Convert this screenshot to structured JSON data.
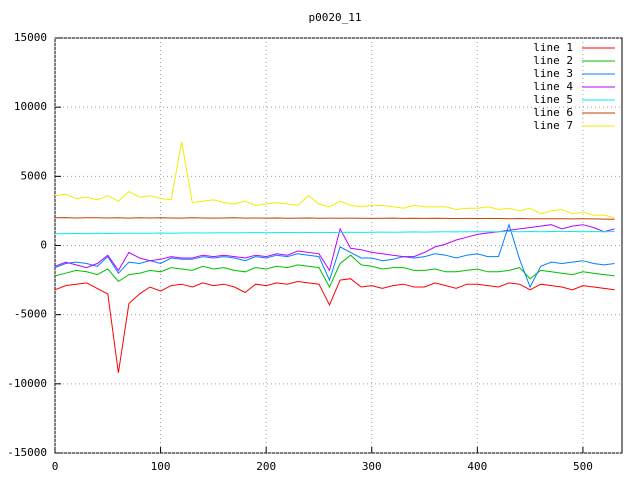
{
  "chart_data": {
    "type": "line",
    "title": "p0020_11",
    "x": [
      0,
      10,
      20,
      30,
      40,
      50,
      60,
      70,
      80,
      90,
      100,
      110,
      120,
      130,
      140,
      150,
      160,
      170,
      180,
      190,
      200,
      210,
      220,
      230,
      240,
      250,
      260,
      270,
      280,
      290,
      300,
      310,
      320,
      330,
      340,
      350,
      360,
      370,
      380,
      390,
      400,
      410,
      420,
      430,
      440,
      450,
      460,
      470,
      480,
      490,
      500,
      510,
      520,
      530
    ],
    "series": [
      {
        "name": "line 1",
        "color": "#ff0000",
        "values": [
          -3200,
          -2900,
          -2800,
          -2700,
          -3100,
          -3500,
          -9200,
          -4200,
          -3500,
          -3000,
          -3300,
          -2900,
          -2800,
          -3000,
          -2700,
          -2900,
          -2800,
          -3000,
          -3400,
          -2800,
          -2900,
          -2700,
          -2800,
          -2600,
          -2700,
          -2800,
          -4300,
          -2500,
          -2400,
          -3000,
          -2900,
          -3100,
          -2900,
          -2800,
          -3000,
          -3000,
          -2700,
          -2900,
          -3100,
          -2800,
          -2800,
          -2900,
          -3000,
          -2700,
          -2800,
          -3200,
          -2800,
          -2900,
          -3000,
          -3200,
          -2900,
          -3000,
          -3100,
          -3200
        ]
      },
      {
        "name": "line 2",
        "color": "#00c000",
        "values": [
          -2200,
          -2000,
          -1800,
          -1900,
          -2100,
          -1700,
          -2600,
          -2100,
          -2000,
          -1800,
          -1900,
          -1600,
          -1700,
          -1800,
          -1500,
          -1700,
          -1600,
          -1800,
          -1900,
          -1600,
          -1700,
          -1500,
          -1600,
          -1400,
          -1500,
          -1600,
          -3000,
          -1300,
          -700,
          -1400,
          -1500,
          -1700,
          -1600,
          -1600,
          -1800,
          -1800,
          -1700,
          -1900,
          -1900,
          -1800,
          -1700,
          -1900,
          -1900,
          -1800,
          -1600,
          -2400,
          -1800,
          -1900,
          -2000,
          -2100,
          -1900,
          -2000,
          -2100,
          -2200
        ]
      },
      {
        "name": "line 3",
        "color": "#0080ff",
        "values": [
          -1600,
          -1300,
          -1200,
          -1300,
          -1500,
          -800,
          -2000,
          -1200,
          -1300,
          -1100,
          -1300,
          -900,
          -1000,
          -1000,
          -800,
          -900,
          -800,
          -900,
          -1100,
          -800,
          -900,
          -700,
          -800,
          -600,
          -700,
          -800,
          -2500,
          -100,
          -500,
          -900,
          -900,
          -1100,
          -1000,
          -800,
          -900,
          -800,
          -600,
          -700,
          -900,
          -700,
          -600,
          -800,
          -800,
          1500,
          -1000,
          -3000,
          -1500,
          -1200,
          -1300,
          -1200,
          -1100,
          -1300,
          -1400,
          -1300
        ]
      },
      {
        "name": "line 4",
        "color": "#c000ff",
        "values": [
          -1500,
          -1200,
          -1400,
          -1600,
          -1300,
          -700,
          -1800,
          -500,
          -900,
          -1100,
          -1000,
          -800,
          -900,
          -900,
          -700,
          -800,
          -700,
          -800,
          -900,
          -700,
          -800,
          -600,
          -700,
          -400,
          -500,
          -600,
          -1800,
          1200,
          -200,
          -300,
          -500,
          -600,
          -700,
          -800,
          -800,
          -500,
          -100,
          100,
          400,
          600,
          800,
          900,
          1000,
          1100,
          1200,
          1300,
          1400,
          1500,
          1200,
          1400,
          1500,
          1300,
          1000,
          1200
        ]
      },
      {
        "name": "line 5",
        "color": "#00eeee",
        "values": [
          850,
          860,
          870,
          860,
          880,
          870,
          880,
          890,
          880,
          890,
          900,
          890,
          900,
          910,
          900,
          910,
          920,
          910,
          920,
          930,
          920,
          930,
          940,
          930,
          940,
          950,
          940,
          950,
          960,
          950,
          960,
          970,
          960,
          970,
          980,
          970,
          980,
          990,
          980,
          990,
          1000,
          990,
          1000,
          1010,
          1000,
          1010,
          1000,
          1010,
          1020,
          1010,
          1000,
          1010,
          1000,
          1010
        ]
      },
      {
        "name": "line 6",
        "color": "#c04000",
        "values": [
          2000,
          2020,
          1990,
          2000,
          2010,
          1990,
          2000,
          1980,
          2000,
          1990,
          2000,
          1990,
          1980,
          2000,
          1990,
          1980,
          1990,
          2000,
          1980,
          1990,
          1980,
          1990,
          1970,
          1980,
          1990,
          1970,
          1980,
          1970,
          1980,
          1970,
          1960,
          1970,
          1980,
          1960,
          1970,
          1960,
          1970,
          1960,
          1950,
          1960,
          1950,
          1960,
          1950,
          1940,
          1950,
          1940,
          1930,
          1940,
          1930,
          1920,
          1930,
          1920,
          1910,
          1900
        ]
      },
      {
        "name": "line 7",
        "color": "#eeee00",
        "values": [
          3600,
          3700,
          3400,
          3500,
          3300,
          3600,
          3200,
          3900,
          3500,
          3600,
          3400,
          3300,
          7500,
          3100,
          3200,
          3300,
          3100,
          3000,
          3200,
          2900,
          3000,
          3100,
          3000,
          2900,
          3600,
          3000,
          2800,
          3200,
          2900,
          2800,
          2900,
          2900,
          2800,
          2700,
          2900,
          2800,
          2800,
          2800,
          2600,
          2700,
          2700,
          2800,
          2600,
          2700,
          2500,
          2700,
          2300,
          2500,
          2600,
          2300,
          2400,
          2200,
          2200,
          2000
        ]
      }
    ],
    "xlim": [
      0,
      537
    ],
    "ylim": [
      -15000,
      15000
    ],
    "xticks": [
      0,
      100,
      200,
      300,
      400,
      500
    ],
    "yticks": [
      -15000,
      -10000,
      -5000,
      0,
      5000,
      10000,
      15000
    ],
    "grid": true,
    "legend": "top-right"
  }
}
